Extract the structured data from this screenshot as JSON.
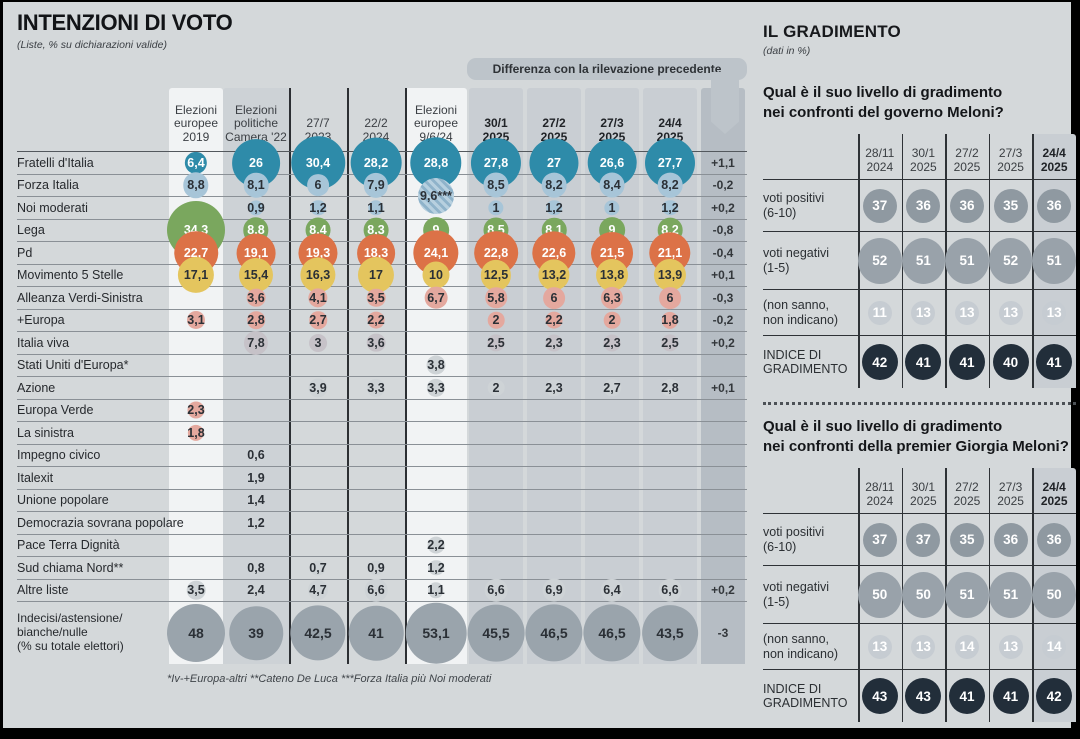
{
  "right_panel": {
    "title": "IL GRADIMENTO",
    "subtitle": "(dati in %)"
  },
  "palette": {
    "teal": "#2e8ba9",
    "paleblue": "#a7c5d8",
    "green": "#7aa75e",
    "orange": "#dc7247",
    "yellow": "#e4c55e",
    "pink": "#e4a89e",
    "grayviolet": "#c6c2c8",
    "faint": "#ced3d6",
    "biggray": "#9aa4ac",
    "pos": "#8f99a1",
    "neg": "#99a2aa",
    "ns": "#c6ccd2",
    "idx": "#222e3a",
    "band_white": "#f1f3f4",
    "band_gray": "#cdd2d6",
    "band_2025": "#c9ced3",
    "band_diff": "#b6bdc4",
    "banner": "#bdc4ca"
  },
  "chart_data": [
    {
      "type": "table",
      "title": "INTENZIONI DI VOTO",
      "subtitle": "(Liste, % su dichiarazioni valide)",
      "diff_header": "Differenza con la rilevazione precedente",
      "columns": [
        {
          "label": "Elezioni\neuropee\n2019",
          "bold": false
        },
        {
          "label": "Elezioni\npolitiche\nCamera '22",
          "bold": false
        },
        {
          "label": "27/7\n2023",
          "bold": false
        },
        {
          "label": "22/2\n2024",
          "bold": false
        },
        {
          "label": "Elezioni\neuropee\n9/6/24",
          "bold": false
        },
        {
          "label": "30/1\n2025",
          "bold": true
        },
        {
          "label": "27/2\n2025",
          "bold": true
        },
        {
          "label": "27/3\n2025",
          "bold": true
        },
        {
          "label": "24/4\n2025",
          "bold": true
        }
      ],
      "rows": [
        {
          "party": "Fratelli d'Italia",
          "style": "teal",
          "white": true,
          "values": [
            "6,4",
            "26",
            "30,4",
            "28,2",
            "28,8",
            "27,8",
            "27",
            "26,6",
            "27,7"
          ],
          "diff": "+1,1"
        },
        {
          "party": "Forza Italia",
          "style": "paleblue",
          "white": false,
          "values": [
            "8,8",
            "8,1",
            "6",
            "7,9",
            "",
            "8,5",
            "8,2",
            "8,4",
            "8,2"
          ],
          "diff": "-0,2",
          "special": {
            "col": 4,
            "text": "9,6***"
          }
        },
        {
          "party": "Noi moderati",
          "style": "paleblue",
          "white": false,
          "values": [
            "",
            "0,9",
            "1,2",
            "1,1",
            "",
            "1",
            "1,2",
            "1",
            "1,2"
          ],
          "diff": "+0,2"
        },
        {
          "party": "Lega",
          "style": "green",
          "white": true,
          "values": [
            "34,3",
            "8,8",
            "8,4",
            "8,3",
            "9",
            "8,5",
            "8,1",
            "9",
            "8,2"
          ],
          "diff": "-0,8"
        },
        {
          "party": "Pd",
          "style": "orange",
          "white": true,
          "values": [
            "22,7",
            "19,1",
            "19,3",
            "18,3",
            "24,1",
            "22,8",
            "22,6",
            "21,5",
            "21,1"
          ],
          "diff": "-0,4"
        },
        {
          "party": "Movimento 5 Stelle",
          "style": "yellow",
          "white": false,
          "values": [
            "17,1",
            "15,4",
            "16,3",
            "17",
            "10",
            "12,5",
            "13,2",
            "13,8",
            "13,9"
          ],
          "diff": "+0,1"
        },
        {
          "party": "Alleanza Verdi-Sinistra",
          "style": "pink",
          "white": false,
          "values": [
            "",
            "3,6",
            "4,1",
            "3,5",
            "6,7",
            "5,8",
            "6",
            "6,3",
            "6"
          ],
          "diff": "-0,3"
        },
        {
          "party": "+Europa",
          "style": "pink",
          "white": false,
          "values": [
            "3,1",
            "2,8",
            "2,7",
            "2,2",
            "",
            "2",
            "2,2",
            "2",
            "1,8"
          ],
          "diff": "-0,2"
        },
        {
          "party": "Italia viva",
          "style": "grayviolet",
          "white": false,
          "values": [
            "",
            "7,8",
            "3",
            "3,6",
            "",
            "2,5",
            "2,3",
            "2,3",
            "2,5"
          ],
          "diff": "+0,2"
        },
        {
          "party": "Stati Uniti d'Europa*",
          "style": "faint",
          "white": false,
          "values": [
            "",
            "",
            "",
            "",
            "3,8",
            "",
            "",
            "",
            ""
          ],
          "diff": ""
        },
        {
          "party": "Azione",
          "style": "faint",
          "white": false,
          "values": [
            "",
            "",
            "3,9",
            "3,3",
            "3,3",
            "2",
            "2,3",
            "2,7",
            "2,8"
          ],
          "diff": "+0,1"
        },
        {
          "party": "Europa Verde",
          "style": "pink",
          "white": false,
          "values": [
            "2,3",
            "",
            "",
            "",
            "",
            "",
            "",
            "",
            ""
          ],
          "diff": ""
        },
        {
          "party": "La sinistra",
          "style": "pink",
          "white": false,
          "values": [
            "1,8",
            "",
            "",
            "",
            "",
            "",
            "",
            "",
            ""
          ],
          "diff": ""
        },
        {
          "party": "Impegno civico",
          "style": "none",
          "white": false,
          "values": [
            "",
            "0,6",
            "",
            "",
            "",
            "",
            "",
            "",
            ""
          ],
          "diff": ""
        },
        {
          "party": "Italexit",
          "style": "none",
          "white": false,
          "values": [
            "",
            "1,9",
            "",
            "",
            "",
            "",
            "",
            "",
            ""
          ],
          "diff": ""
        },
        {
          "party": "Unione popolare",
          "style": "none",
          "white": false,
          "values": [
            "",
            "1,4",
            "",
            "",
            "",
            "",
            "",
            "",
            ""
          ],
          "diff": ""
        },
        {
          "party": "Democrazia sovrana popolare",
          "style": "none",
          "white": false,
          "values": [
            "",
            "1,2",
            "",
            "",
            "",
            "",
            "",
            "",
            ""
          ],
          "diff": ""
        },
        {
          "party": "Pace Terra Dignità",
          "style": "faint",
          "white": false,
          "values": [
            "",
            "",
            "",
            "",
            "2,2",
            "",
            "",
            "",
            ""
          ],
          "diff": ""
        },
        {
          "party": "Sud chiama Nord**",
          "style": "faint",
          "white": false,
          "values": [
            "",
            "0,8",
            "0,7",
            "0,9",
            "1,2",
            "",
            "",
            "",
            ""
          ],
          "diff": ""
        },
        {
          "party": "Altre liste",
          "style": "faint",
          "white": false,
          "values": [
            "3,5",
            "2,4",
            "4,7",
            "6,6",
            "1,1",
            "6,6",
            "6,9",
            "6,4",
            "6,6"
          ],
          "diff": "+0,2"
        },
        {
          "party": "Indecisi/astensione/\nbianche/nulle\n(% su totale elettori)",
          "style": "biggray",
          "white": false,
          "big": true,
          "values": [
            "48",
            "39",
            "42,5",
            "41",
            "53,1",
            "45,5",
            "46,5",
            "46,5",
            "43,5"
          ],
          "diff": "-3"
        }
      ],
      "footnote": "*Iv-+Europa-altri  **Cateno De Luca  ***Forza Italia più Noi moderati"
    },
    {
      "type": "table",
      "question": "Qual è il suo livello di gradimento\nnei confronti del governo Meloni?",
      "columns": [
        {
          "label": "28/11\n2024",
          "bold": false
        },
        {
          "label": "30/1\n2025",
          "bold": false
        },
        {
          "label": "27/2\n2025",
          "bold": false
        },
        {
          "label": "27/3\n2025",
          "bold": false
        },
        {
          "label": "24/4\n2025",
          "bold": true
        }
      ],
      "rows": [
        {
          "label": "voti positivi\n(6-10)",
          "style": "pos",
          "values": [
            37,
            36,
            36,
            35,
            36
          ]
        },
        {
          "label": "voti negativi\n(1-5)",
          "style": "neg",
          "values": [
            52,
            51,
            51,
            52,
            51
          ]
        },
        {
          "label": "(non sanno,\nnon indicano)",
          "style": "ns",
          "values": [
            11,
            13,
            13,
            13,
            13
          ]
        },
        {
          "label": "INDICE DI\nGRADIMENTO",
          "style": "idx",
          "values": [
            42,
            41,
            41,
            40,
            41
          ]
        }
      ]
    },
    {
      "type": "table",
      "question": "Qual è il suo livello di gradimento\nnei confronti della premier Giorgia Meloni?",
      "columns": [
        {
          "label": "28/11\n2024",
          "bold": false
        },
        {
          "label": "30/1\n2025",
          "bold": false
        },
        {
          "label": "27/2\n2025",
          "bold": false
        },
        {
          "label": "27/3\n2025",
          "bold": false
        },
        {
          "label": "24/4\n2025",
          "bold": true
        }
      ],
      "rows": [
        {
          "label": "voti positivi\n(6-10)",
          "style": "pos",
          "values": [
            37,
            37,
            35,
            36,
            36
          ]
        },
        {
          "label": "voti negativi\n(1-5)",
          "style": "neg",
          "values": [
            50,
            50,
            51,
            51,
            50
          ]
        },
        {
          "label": "(non sanno,\nnon indicano)",
          "style": "ns",
          "values": [
            13,
            13,
            14,
            13,
            14
          ]
        },
        {
          "label": "INDICE DI\nGRADIMENTO",
          "style": "idx",
          "values": [
            43,
            43,
            41,
            41,
            42
          ]
        }
      ]
    }
  ]
}
